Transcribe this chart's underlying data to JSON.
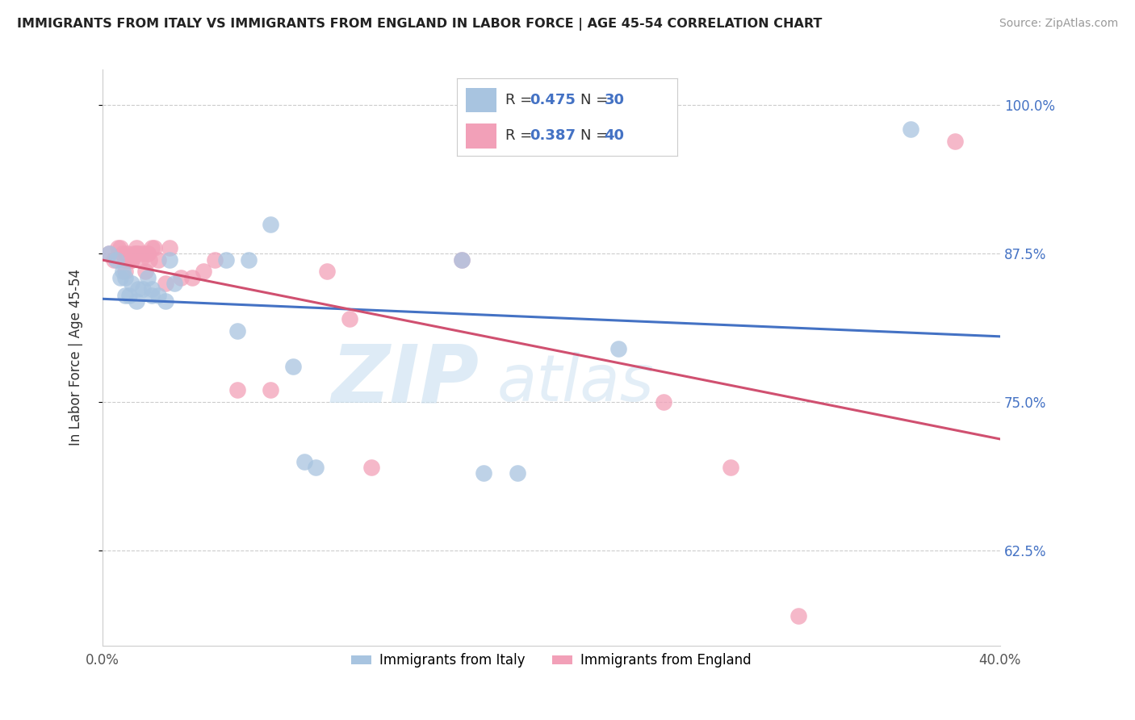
{
  "title": "IMMIGRANTS FROM ITALY VS IMMIGRANTS FROM ENGLAND IN LABOR FORCE | AGE 45-54 CORRELATION CHART",
  "source": "Source: ZipAtlas.com",
  "ylabel": "In Labor Force | Age 45-54",
  "xlim": [
    0.0,
    0.4
  ],
  "ylim": [
    0.545,
    1.03
  ],
  "xticks": [
    0.0,
    0.1,
    0.2,
    0.3,
    0.4
  ],
  "xticklabels": [
    "0.0%",
    "",
    "",
    "",
    "40.0%"
  ],
  "yticks": [
    0.625,
    0.75,
    0.875,
    1.0
  ],
  "yticklabels": [
    "62.5%",
    "75.0%",
    "87.5%",
    "100.0%"
  ],
  "italy_color": "#a8c4e0",
  "england_color": "#f2a0b8",
  "italy_line_color": "#4472c4",
  "england_line_color": "#d05070",
  "italy_R": 0.475,
  "italy_N": 30,
  "england_R": 0.387,
  "england_N": 40,
  "legend_label_italy": "Immigrants from Italy",
  "legend_label_england": "Immigrants from England",
  "watermark_zip": "ZIP",
  "watermark_atlas": "atlas",
  "italy_x": [
    0.003,
    0.006,
    0.008,
    0.009,
    0.01,
    0.01,
    0.012,
    0.013,
    0.015,
    0.016,
    0.018,
    0.02,
    0.022,
    0.022,
    0.025,
    0.028,
    0.03,
    0.032,
    0.055,
    0.06,
    0.065,
    0.075,
    0.085,
    0.09,
    0.095,
    0.16,
    0.17,
    0.185,
    0.23,
    0.36
  ],
  "italy_y": [
    0.875,
    0.87,
    0.855,
    0.86,
    0.84,
    0.855,
    0.84,
    0.85,
    0.835,
    0.845,
    0.845,
    0.855,
    0.84,
    0.845,
    0.84,
    0.835,
    0.87,
    0.85,
    0.87,
    0.81,
    0.87,
    0.9,
    0.78,
    0.7,
    0.695,
    0.87,
    0.69,
    0.69,
    0.795,
    0.98
  ],
  "england_x": [
    0.003,
    0.005,
    0.007,
    0.008,
    0.009,
    0.01,
    0.01,
    0.011,
    0.012,
    0.013,
    0.013,
    0.014,
    0.015,
    0.015,
    0.016,
    0.017,
    0.018,
    0.019,
    0.02,
    0.02,
    0.021,
    0.022,
    0.023,
    0.025,
    0.028,
    0.03,
    0.035,
    0.04,
    0.045,
    0.05,
    0.06,
    0.075,
    0.1,
    0.11,
    0.12,
    0.16,
    0.25,
    0.28,
    0.31,
    0.38
  ],
  "england_y": [
    0.875,
    0.87,
    0.88,
    0.88,
    0.875,
    0.86,
    0.87,
    0.875,
    0.87,
    0.87,
    0.87,
    0.875,
    0.875,
    0.88,
    0.875,
    0.87,
    0.875,
    0.86,
    0.875,
    0.875,
    0.87,
    0.88,
    0.88,
    0.87,
    0.85,
    0.88,
    0.855,
    0.855,
    0.86,
    0.87,
    0.76,
    0.76,
    0.86,
    0.82,
    0.695,
    0.87,
    0.75,
    0.695,
    0.57,
    0.97
  ]
}
